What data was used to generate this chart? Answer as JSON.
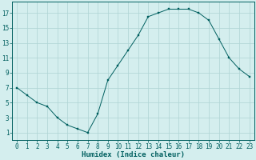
{
  "x": [
    0,
    1,
    2,
    3,
    4,
    5,
    6,
    7,
    8,
    9,
    10,
    11,
    12,
    13,
    14,
    15,
    16,
    17,
    18,
    19,
    20,
    21,
    22,
    23
  ],
  "y": [
    7,
    6,
    5,
    4.5,
    3,
    2,
    1.5,
    1,
    3.5,
    8,
    10,
    12,
    14,
    16.5,
    17,
    17.5,
    17.5,
    17.5,
    17,
    16,
    13.5,
    11,
    9.5,
    8.5
  ],
  "xlabel": "Humidex (Indice chaleur)",
  "yticks": [
    1,
    3,
    5,
    7,
    9,
    11,
    13,
    15,
    17
  ],
  "xticks": [
    0,
    1,
    2,
    3,
    4,
    5,
    6,
    7,
    8,
    9,
    10,
    11,
    12,
    13,
    14,
    15,
    16,
    17,
    18,
    19,
    20,
    21,
    22,
    23
  ],
  "ylim": [
    0,
    18.5
  ],
  "xlim": [
    -0.5,
    23.5
  ],
  "line_color": "#005f5f",
  "marker": "s",
  "marker_size": 1.8,
  "bg_color": "#d4eeee",
  "grid_color": "#aed4d4",
  "axis_color": "#005f5f",
  "xlabel_fontsize": 6.5,
  "tick_fontsize": 5.5
}
